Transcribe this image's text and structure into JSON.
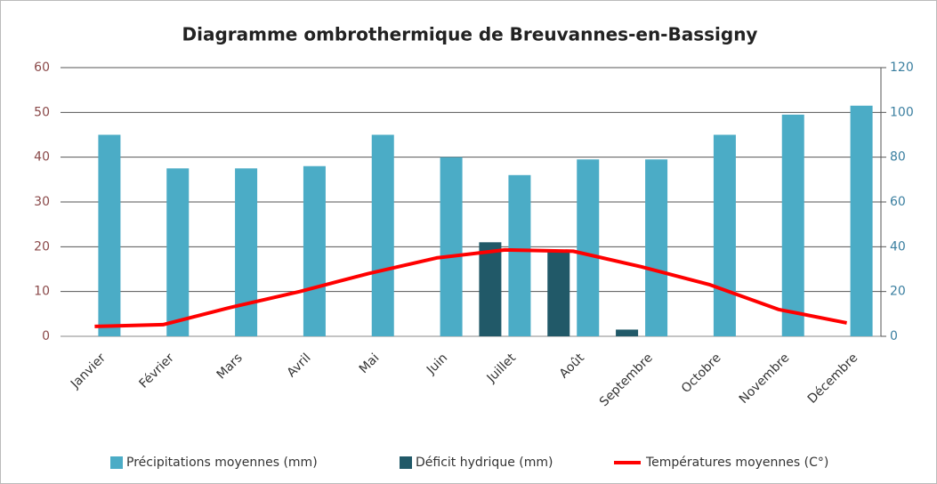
{
  "chart_data": {
    "type": "bar",
    "title": "Diagramme ombrothermique de Breuvannes-en-Bassigny",
    "categories": [
      "Janvier",
      "Février",
      "Mars",
      "Avril",
      "Mai",
      "Juin",
      "Juillet",
      "Août",
      "Septembre",
      "Octobre",
      "Novembre",
      "Décembre"
    ],
    "series": [
      {
        "name": "Précipitations moyennes (mm)",
        "color": "#4bacc6",
        "type": "bar",
        "axis": "y2",
        "values": [
          90,
          75,
          75,
          76,
          90,
          80,
          72,
          79,
          79,
          90,
          99,
          103
        ]
      },
      {
        "name": "Déficit hydrique (mm)",
        "color": "#215968",
        "type": "bar",
        "axis": "y2",
        "values": [
          null,
          null,
          null,
          null,
          null,
          null,
          42,
          38,
          3,
          null,
          null,
          null
        ]
      },
      {
        "name": "Températures moyennes (C°)",
        "color": "#ff0000",
        "type": "line",
        "values": [
          2.2,
          2.6,
          6.5,
          10,
          14,
          17.5,
          19.3,
          19,
          15.5,
          11.5,
          6,
          3
        ]
      }
    ],
    "ylim": [
      0,
      60
    ],
    "yticks": [
      0,
      10,
      20,
      30,
      40,
      50,
      60
    ],
    "y2lim": [
      0,
      120
    ],
    "y2ticks": [
      0,
      20,
      40,
      60,
      80,
      100,
      120
    ],
    "grid": true,
    "legend": "bottom"
  }
}
